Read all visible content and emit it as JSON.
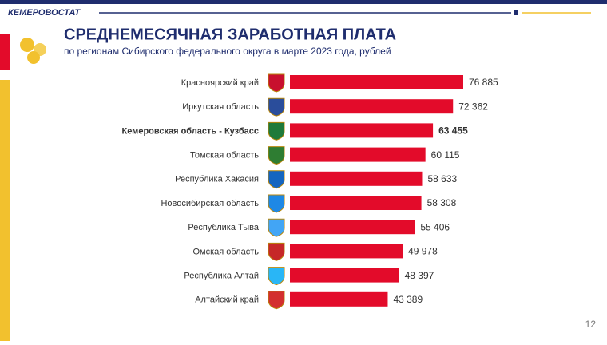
{
  "header": "КЕМЕРОВОСТАТ",
  "page_number": "12",
  "chart_data": {
    "type": "bar",
    "orientation": "horizontal",
    "title": "СРЕДНЕМЕСЯЧНАЯ ЗАРАБОТНАЯ ПЛАТА",
    "subtitle": "по регионам Сибирского федерального округа в марте 2023 года, рублей",
    "categories": [
      "Красноярский край",
      "Иркутская область",
      "Кемеровская область - Кузбасс",
      "Томская область",
      "Республика Хакасия",
      "Новосибирская область",
      "Республика Тыва",
      "Омская область",
      "Республика Алтай",
      "Алтайский край"
    ],
    "values": [
      76885,
      72362,
      63455,
      60115,
      58633,
      58308,
      55406,
      49978,
      48397,
      43389
    ],
    "value_labels": [
      "76 885",
      "72 362",
      "63 455",
      "60 115",
      "58 633",
      "58 308",
      "55 406",
      "49 978",
      "48 397",
      "43 389"
    ],
    "color": "#e30b2a",
    "highlight": "Кемеровская область - Кузбасс"
  }
}
